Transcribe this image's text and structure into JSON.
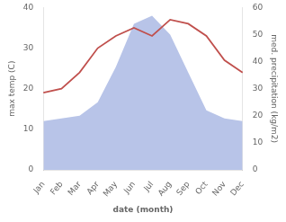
{
  "chart_data": {
    "type": "line",
    "categories": [
      "Jan",
      "Feb",
      "Mar",
      "Apr",
      "May",
      "Jun",
      "Jul",
      "Aug",
      "Sep",
      "Oct",
      "Nov",
      "Dec"
    ],
    "series": [
      {
        "type": "line",
        "color": "#c0504d",
        "values": [
          19,
          20,
          24,
          30,
          33,
          35,
          33,
          37,
          36,
          33,
          27,
          24
        ]
      },
      {
        "type": "area",
        "color": "#b8c4e8",
        "axis": "y2",
        "values": [
          18,
          19,
          20,
          25,
          38,
          54,
          57,
          50,
          36,
          22,
          19,
          18
        ]
      }
    ],
    "xlabel": "date (month)",
    "ylabel": "max temp (C)",
    "y2label": "med. precipitation (kg/m2)",
    "ylim": [
      0,
      40
    ],
    "yticks": [
      0,
      10,
      20,
      30,
      40
    ],
    "y2lim": [
      0,
      60
    ],
    "y2ticks": [
      0,
      10,
      20,
      30,
      40,
      50,
      60
    ],
    "grid": false
  }
}
